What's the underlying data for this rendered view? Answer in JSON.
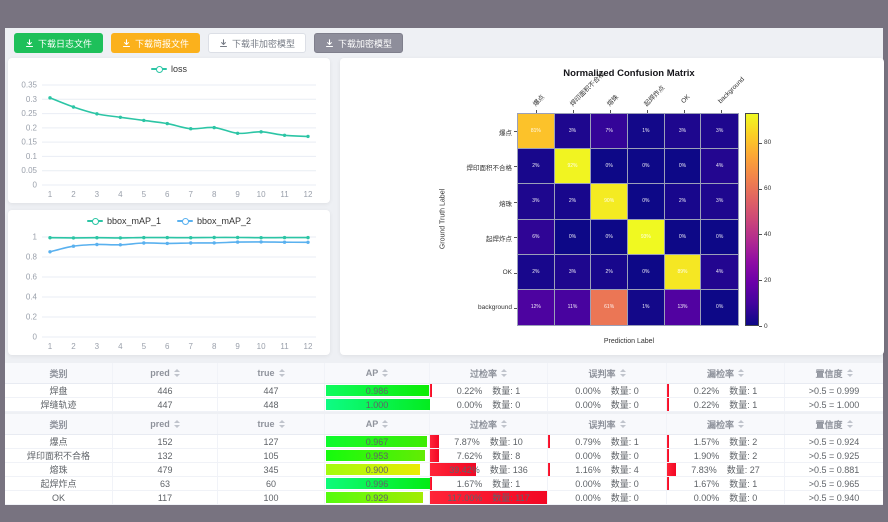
{
  "colors": {
    "frame": "#787380",
    "content_bg": "#eef0f4",
    "button_green": "#1ec05a",
    "button_orange": "#fbb11c",
    "button_dark": "#8e8e9b",
    "series_teal": "#2cc5a5",
    "series_blue": "#5ab1ef",
    "rate_bar_red": "#f51a30"
  },
  "toolbar": {
    "buttons": [
      {
        "name": "download-log-file-button",
        "label": "下载日志文件",
        "style": "green"
      },
      {
        "name": "download-report-file-button",
        "label": "下载简报文件",
        "style": "orange"
      },
      {
        "name": "download-unencrypted-model-button",
        "label": "下载非加密模型",
        "style": "plain"
      },
      {
        "name": "download-encrypted-model-button",
        "label": "下载加密模型",
        "style": "dark"
      }
    ]
  },
  "chart_data": [
    {
      "type": "line",
      "name": "loss-chart",
      "x": [
        1,
        2,
        3,
        4,
        5,
        6,
        7,
        8,
        9,
        10,
        11,
        12
      ],
      "ylim": [
        0,
        0.35
      ],
      "yticks": [
        0,
        0.05,
        0.1,
        0.15,
        0.2,
        0.25,
        0.3,
        0.35
      ],
      "grid": true,
      "legend_position": "top",
      "series": [
        {
          "name": "loss",
          "color": "#2cc5a5",
          "values": [
            0.305,
            0.273,
            0.249,
            0.237,
            0.226,
            0.215,
            0.197,
            0.201,
            0.181,
            0.186,
            0.174,
            0.17
          ]
        }
      ]
    },
    {
      "type": "line",
      "name": "bbox-map-chart",
      "x": [
        1,
        2,
        3,
        4,
        5,
        6,
        7,
        8,
        9,
        10,
        11,
        12
      ],
      "ylim": [
        0,
        1
      ],
      "yticks": [
        0,
        0.2,
        0.4,
        0.6,
        0.8,
        1
      ],
      "grid": true,
      "legend_position": "top",
      "series": [
        {
          "name": "bbox_mAP_1",
          "color": "#2cc5a5",
          "values": [
            0.993,
            0.991,
            0.993,
            0.991,
            0.994,
            0.994,
            0.993,
            0.995,
            0.995,
            0.993,
            0.994,
            0.994
          ]
        },
        {
          "name": "bbox_mAP_2",
          "color": "#5ab1ef",
          "values": [
            0.852,
            0.908,
            0.925,
            0.922,
            0.94,
            0.936,
            0.94,
            0.941,
            0.949,
            0.951,
            0.948,
            0.947
          ]
        }
      ]
    },
    {
      "type": "heatmap",
      "name": "confusion-matrix",
      "title": "Normalized Confusion Matrix",
      "xlabel": "Prediction Label",
      "ylabel": "Ground Truth Label",
      "labels": [
        "爆点",
        "焊印面积不合格",
        "熔珠",
        "起焊炸点",
        "OK",
        "background"
      ],
      "unit": "%",
      "rows": [
        [
          81,
          3,
          7,
          1,
          3,
          3
        ],
        [
          2,
          92,
          0,
          0,
          0,
          4
        ],
        [
          3,
          2,
          90,
          0,
          2,
          3
        ],
        [
          6,
          0,
          0,
          93,
          0,
          0
        ],
        [
          2,
          3,
          2,
          0,
          89,
          4
        ],
        [
          12,
          11,
          61,
          1,
          13,
          0
        ]
      ],
      "vmax": 93,
      "colorbar_ticks": [
        0,
        20,
        40,
        60,
        80
      ],
      "colormap": "plasma"
    }
  ],
  "tables": [
    {
      "name": "segmentation-metrics-table",
      "count_prefix": "数量:",
      "headers": [
        {
          "label": "类别",
          "sortable": false
        },
        {
          "label": "pred",
          "sortable": true
        },
        {
          "label": "true",
          "sortable": true
        },
        {
          "label": "AP",
          "sortable": true
        },
        {
          "label": "过检率",
          "sortable": true
        },
        {
          "label": "误判率",
          "sortable": true
        },
        {
          "label": "漏检率",
          "sortable": true
        },
        {
          "label": "置信度",
          "sortable": true
        }
      ],
      "rows": [
        {
          "cls": "焊盘",
          "pred": "446",
          "true": "447",
          "ap": "0.986",
          "rates": [
            {
              "pct": "0.22%",
              "count": "1"
            },
            {
              "pct": "0.00%",
              "count": "0"
            },
            {
              "pct": "0.22%",
              "count": "1"
            }
          ],
          "conf": ">0.5 = 0.999"
        },
        {
          "cls": "焊缝轨迹",
          "pred": "447",
          "true": "448",
          "ap": "1.000",
          "rates": [
            {
              "pct": "0.00%",
              "count": "0"
            },
            {
              "pct": "0.00%",
              "count": "0"
            },
            {
              "pct": "0.22%",
              "count": "1"
            }
          ],
          "conf": ">0.5 = 1.000"
        }
      ]
    },
    {
      "name": "detection-metrics-table",
      "count_prefix": "数量:",
      "headers": [
        {
          "label": "类别",
          "sortable": false
        },
        {
          "label": "pred",
          "sortable": true
        },
        {
          "label": "true",
          "sortable": true
        },
        {
          "label": "AP",
          "sortable": true
        },
        {
          "label": "过检率",
          "sortable": true
        },
        {
          "label": "误判率",
          "sortable": true
        },
        {
          "label": "漏检率",
          "sortable": true
        },
        {
          "label": "置信度",
          "sortable": true
        }
      ],
      "rows": [
        {
          "cls": "爆点",
          "pred": "152",
          "true": "127",
          "ap": "0.967",
          "rates": [
            {
              "pct": "7.87%",
              "count": "10"
            },
            {
              "pct": "0.79%",
              "count": "1"
            },
            {
              "pct": "1.57%",
              "count": "2"
            }
          ],
          "conf": ">0.5 = 0.924"
        },
        {
          "cls": "焊印面积不合格",
          "pred": "132",
          "true": "105",
          "ap": "0.953",
          "rates": [
            {
              "pct": "7.62%",
              "count": "8"
            },
            {
              "pct": "0.00%",
              "count": "0"
            },
            {
              "pct": "1.90%",
              "count": "2"
            }
          ],
          "conf": ">0.5 = 0.925"
        },
        {
          "cls": "熔珠",
          "pred": "479",
          "true": "345",
          "ap": "0.900",
          "rates": [
            {
              "pct": "39.42%",
              "count": "136"
            },
            {
              "pct": "1.16%",
              "count": "4"
            },
            {
              "pct": "7.83%",
              "count": "27"
            }
          ],
          "conf": ">0.5 = 0.881"
        },
        {
          "cls": "起焊炸点",
          "pred": "63",
          "true": "60",
          "ap": "0.996",
          "rates": [
            {
              "pct": "1.67%",
              "count": "1"
            },
            {
              "pct": "0.00%",
              "count": "0"
            },
            {
              "pct": "1.67%",
              "count": "1"
            }
          ],
          "conf": ">0.5 = 0.965"
        },
        {
          "cls": "OK",
          "pred": "117",
          "true": "100",
          "ap": "0.929",
          "rates": [
            {
              "pct": "117.00%",
              "count": "117"
            },
            {
              "pct": "0.00%",
              "count": "0"
            },
            {
              "pct": "0.00%",
              "count": "0"
            }
          ],
          "conf": ">0.5 = 0.940"
        }
      ]
    }
  ]
}
